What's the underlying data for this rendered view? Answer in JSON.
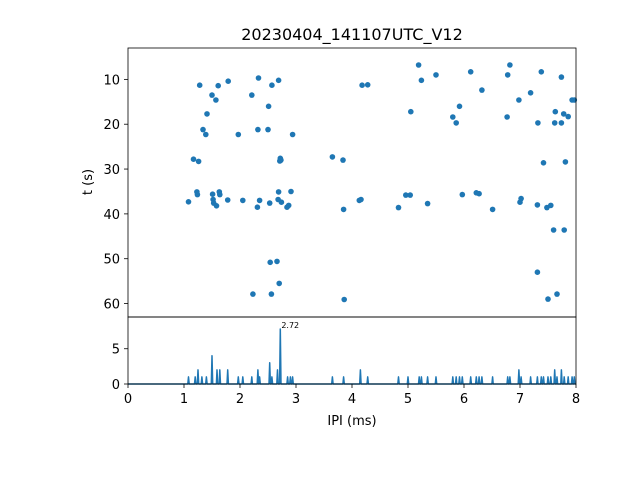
{
  "chart_data": [
    {
      "type": "scatter",
      "title": "20230404_141107UTC_V12",
      "xlabel": "",
      "ylabel": "t (s)",
      "xlim": [
        0,
        8
      ],
      "ylim": [
        63,
        3
      ],
      "y_inverted": true,
      "yticks": [
        10,
        20,
        30,
        40,
        50,
        60
      ],
      "color": "#1f77b4",
      "points": [
        [
          1.08,
          37.3
        ],
        [
          1.17,
          27.8
        ],
        [
          1.23,
          35.1
        ],
        [
          1.24,
          35.7
        ],
        [
          1.26,
          28.3
        ],
        [
          1.28,
          11.3
        ],
        [
          1.34,
          21.2
        ],
        [
          1.39,
          22.3
        ],
        [
          1.41,
          17.7
        ],
        [
          1.5,
          13.5
        ],
        [
          1.51,
          35.6
        ],
        [
          1.52,
          36.8
        ],
        [
          1.53,
          37.6
        ],
        [
          1.57,
          14.6
        ],
        [
          1.58,
          38.2
        ],
        [
          1.61,
          11.4
        ],
        [
          1.63,
          35.1
        ],
        [
          1.64,
          35.7
        ],
        [
          1.78,
          36.9
        ],
        [
          1.79,
          10.4
        ],
        [
          1.97,
          22.3
        ],
        [
          2.05,
          37.0
        ],
        [
          2.21,
          13.5
        ],
        [
          2.23,
          57.9
        ],
        [
          2.31,
          38.5
        ],
        [
          2.32,
          21.2
        ],
        [
          2.33,
          9.7
        ],
        [
          2.35,
          37.0
        ],
        [
          2.5,
          21.2
        ],
        [
          2.51,
          16.0
        ],
        [
          2.53,
          37.6
        ],
        [
          2.54,
          50.8
        ],
        [
          2.56,
          57.9
        ],
        [
          2.57,
          11.3
        ],
        [
          2.66,
          50.6
        ],
        [
          2.68,
          36.8
        ],
        [
          2.69,
          10.2
        ],
        [
          2.69,
          35.1
        ],
        [
          2.7,
          55.5
        ],
        [
          2.71,
          28.2
        ],
        [
          2.72,
          27.6
        ],
        [
          2.73,
          28.0
        ],
        [
          2.74,
          37.4
        ],
        [
          2.84,
          38.5
        ],
        [
          2.87,
          38.1
        ],
        [
          2.91,
          35.0
        ],
        [
          2.94,
          22.3
        ],
        [
          3.65,
          27.3
        ],
        [
          3.84,
          28.0
        ],
        [
          3.85,
          39.0
        ],
        [
          3.86,
          59.1
        ],
        [
          4.13,
          37.0
        ],
        [
          4.16,
          36.8
        ],
        [
          4.18,
          11.3
        ],
        [
          4.28,
          11.2
        ],
        [
          4.83,
          38.6
        ],
        [
          4.96,
          35.8
        ],
        [
          5.04,
          35.8
        ],
        [
          5.05,
          17.2
        ],
        [
          5.19,
          6.8
        ],
        [
          5.24,
          10.2
        ],
        [
          5.35,
          37.7
        ],
        [
          5.5,
          9.0
        ],
        [
          5.8,
          18.4
        ],
        [
          5.86,
          19.7
        ],
        [
          5.92,
          16.0
        ],
        [
          5.97,
          35.7
        ],
        [
          6.12,
          8.3
        ],
        [
          6.22,
          35.3
        ],
        [
          6.27,
          35.5
        ],
        [
          6.32,
          12.4
        ],
        [
          6.51,
          39.0
        ],
        [
          6.77,
          18.4
        ],
        [
          6.78,
          9.0
        ],
        [
          6.82,
          6.8
        ],
        [
          6.98,
          14.6
        ],
        [
          7.0,
          37.4
        ],
        [
          7.02,
          36.6
        ],
        [
          7.19,
          13.0
        ],
        [
          7.31,
          53.0
        ],
        [
          7.31,
          38.0
        ],
        [
          7.32,
          19.7
        ],
        [
          7.38,
          8.3
        ],
        [
          7.42,
          28.6
        ],
        [
          7.48,
          38.6
        ],
        [
          7.5,
          59.0
        ],
        [
          7.55,
          38.1
        ],
        [
          7.6,
          43.6
        ],
        [
          7.62,
          19.7
        ],
        [
          7.63,
          17.2
        ],
        [
          7.66,
          57.9
        ],
        [
          7.74,
          19.7
        ],
        [
          7.74,
          9.5
        ],
        [
          7.78,
          17.7
        ],
        [
          7.79,
          43.6
        ],
        [
          7.81,
          28.4
        ],
        [
          7.86,
          18.3
        ],
        [
          7.93,
          14.6
        ],
        [
          7.97,
          14.6
        ]
      ]
    },
    {
      "type": "line",
      "title": "",
      "xlabel": "IPI (ms)",
      "ylabel": "",
      "xlim": [
        0,
        8
      ],
      "ylim": [
        0,
        9.5
      ],
      "xticks": [
        0,
        1,
        2,
        3,
        4,
        5,
        6,
        7,
        8
      ],
      "yticks": [
        0,
        5
      ],
      "color": "#1f77b4",
      "peak_annotation": {
        "x": 2.72,
        "y": 7.8,
        "label": "2.72"
      },
      "peaks": [
        [
          1.08,
          1
        ],
        [
          1.2,
          1
        ],
        [
          1.25,
          2
        ],
        [
          1.32,
          1
        ],
        [
          1.4,
          1
        ],
        [
          1.5,
          4
        ],
        [
          1.59,
          2
        ],
        [
          1.64,
          2
        ],
        [
          1.78,
          2
        ],
        [
          1.97,
          1
        ],
        [
          2.05,
          1
        ],
        [
          2.21,
          1
        ],
        [
          2.32,
          2
        ],
        [
          2.35,
          1
        ],
        [
          2.53,
          3
        ],
        [
          2.57,
          1
        ],
        [
          2.67,
          2
        ],
        [
          2.72,
          7.8
        ],
        [
          2.85,
          1
        ],
        [
          2.9,
          1
        ],
        [
          2.94,
          1
        ],
        [
          3.65,
          1
        ],
        [
          3.85,
          1
        ],
        [
          4.15,
          2
        ],
        [
          4.28,
          1
        ],
        [
          4.83,
          1
        ],
        [
          5.0,
          1
        ],
        [
          5.2,
          1
        ],
        [
          5.24,
          1
        ],
        [
          5.35,
          1
        ],
        [
          5.5,
          1
        ],
        [
          5.8,
          1
        ],
        [
          5.86,
          1
        ],
        [
          5.92,
          1
        ],
        [
          5.97,
          1
        ],
        [
          6.12,
          1
        ],
        [
          6.22,
          1
        ],
        [
          6.27,
          1
        ],
        [
          6.32,
          1
        ],
        [
          6.51,
          1
        ],
        [
          6.78,
          1
        ],
        [
          6.82,
          1
        ],
        [
          6.98,
          2
        ],
        [
          7.02,
          1
        ],
        [
          7.19,
          1
        ],
        [
          7.31,
          1
        ],
        [
          7.38,
          1
        ],
        [
          7.42,
          1
        ],
        [
          7.5,
          1
        ],
        [
          7.55,
          1
        ],
        [
          7.62,
          2
        ],
        [
          7.66,
          1
        ],
        [
          7.74,
          2
        ],
        [
          7.79,
          1
        ],
        [
          7.86,
          1
        ],
        [
          7.93,
          1
        ],
        [
          7.97,
          1
        ]
      ]
    }
  ]
}
